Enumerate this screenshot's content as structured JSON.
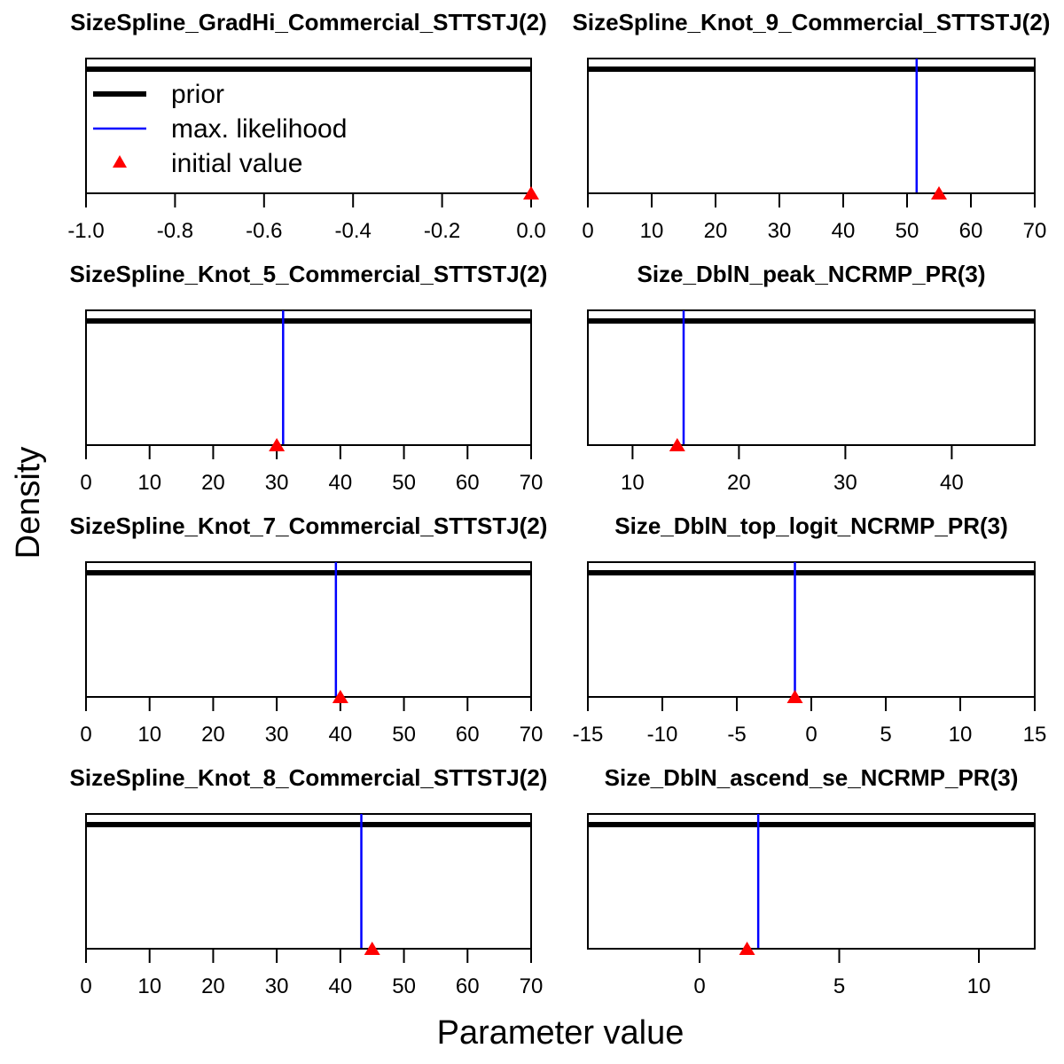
{
  "figure": {
    "xlabel": "Parameter value",
    "ylabel": "Density"
  },
  "legend": {
    "placement": "top-left of first panel",
    "entries": [
      {
        "label": "prior",
        "color": "#000000",
        "kind": "thick-line"
      },
      {
        "label": "max. likelihood",
        "color": "#0000ff",
        "kind": "line"
      },
      {
        "label": "initial value",
        "color": "#ff0000",
        "kind": "triangle"
      }
    ]
  },
  "colors": {
    "prior": "#000000",
    "mle": "#0000ff",
    "initial": "#ff0000"
  },
  "chart_data": [
    {
      "type": "line",
      "title": "SizeSpline_GradHi_Commercial_STTSTJ(2)",
      "xlim": [
        -1.0,
        0.0
      ],
      "ticks": [
        -1.0,
        -0.8,
        -0.6,
        -0.4,
        -0.2,
        0.0
      ],
      "tick_labels": [
        "-1.0",
        "-0.8",
        "-0.6",
        "-0.4",
        "-0.2",
        "0.0"
      ],
      "prior": "flat",
      "mle": null,
      "initial": 0.0
    },
    {
      "type": "line",
      "title": "SizeSpline_Knot_9_Commercial_STTSTJ(2)",
      "xlim": [
        0,
        70
      ],
      "ticks": [
        0,
        10,
        20,
        30,
        40,
        50,
        60,
        70
      ],
      "tick_labels": [
        "0",
        "10",
        "20",
        "30",
        "40",
        "50",
        "60",
        "70"
      ],
      "prior": "flat",
      "mle": 51.5,
      "initial": 55
    },
    {
      "type": "line",
      "title": "SizeSpline_Knot_5_Commercial_STTSTJ(2)",
      "xlim": [
        0,
        70
      ],
      "ticks": [
        0,
        10,
        20,
        30,
        40,
        50,
        60,
        70
      ],
      "tick_labels": [
        "0",
        "10",
        "20",
        "30",
        "40",
        "50",
        "60",
        "70"
      ],
      "prior": "flat",
      "mle": 31,
      "initial": 30
    },
    {
      "type": "line",
      "title": "Size_DblN_peak_NCRMP_PR(3)",
      "xlim": [
        5.8,
        47.8
      ],
      "ticks": [
        10,
        20,
        30,
        40
      ],
      "tick_labels": [
        "10",
        "20",
        "30",
        "40"
      ],
      "prior": "flat",
      "mle": 14.8,
      "initial": 14.2
    },
    {
      "type": "line",
      "title": "SizeSpline_Knot_7_Commercial_STTSTJ(2)",
      "xlim": [
        0,
        70
      ],
      "ticks": [
        0,
        10,
        20,
        30,
        40,
        50,
        60,
        70
      ],
      "tick_labels": [
        "0",
        "10",
        "20",
        "30",
        "40",
        "50",
        "60",
        "70"
      ],
      "prior": "flat",
      "mle": 39.3,
      "initial": 40
    },
    {
      "type": "line",
      "title": "Size_DblN_top_logit_NCRMP_PR(3)",
      "xlim": [
        -15,
        15
      ],
      "ticks": [
        -15,
        -10,
        -5,
        0,
        5,
        10,
        15
      ],
      "tick_labels": [
        "-15",
        "-10",
        "-5",
        "0",
        "5",
        "10",
        "15"
      ],
      "prior": "flat",
      "mle": -1.1,
      "initial": -1.1
    },
    {
      "type": "line",
      "title": "SizeSpline_Knot_8_Commercial_STTSTJ(2)",
      "xlim": [
        0,
        70
      ],
      "ticks": [
        0,
        10,
        20,
        30,
        40,
        50,
        60,
        70
      ],
      "tick_labels": [
        "0",
        "10",
        "20",
        "30",
        "40",
        "50",
        "60",
        "70"
      ],
      "prior": "flat",
      "mle": 43.3,
      "initial": 45
    },
    {
      "type": "line",
      "title": "Size_DblN_ascend_se_NCRMP_PR(3)",
      "xlim": [
        -4,
        12
      ],
      "ticks": [
        0,
        5,
        10
      ],
      "tick_labels": [
        "0",
        "5",
        "10"
      ],
      "prior": "flat",
      "mle": 2.1,
      "initial": 1.7
    }
  ]
}
